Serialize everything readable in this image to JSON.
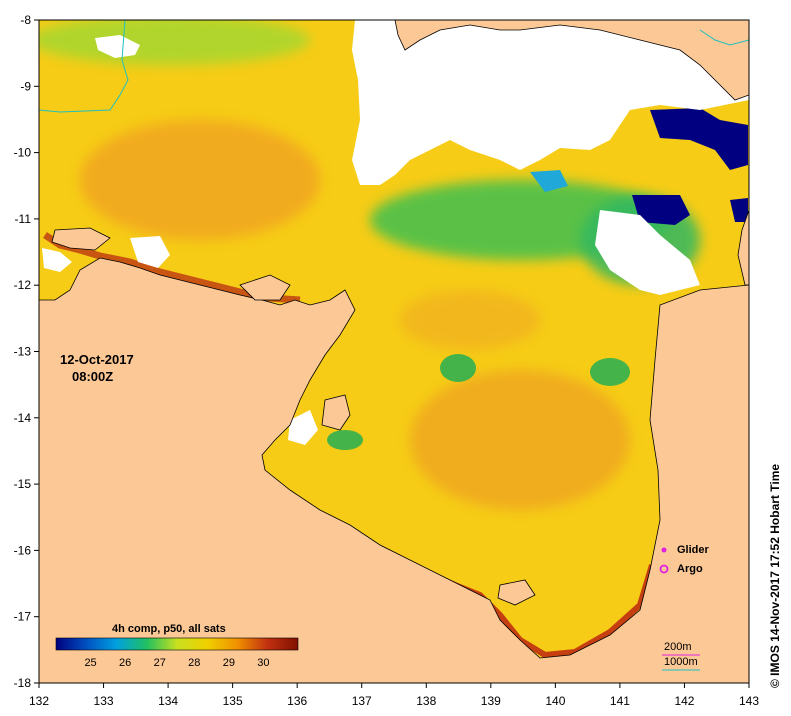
{
  "map": {
    "date": "12-Oct-2017",
    "time": "08:00Z",
    "credit": "© IMOS 14-Nov-2017 17:52 Hobart Time",
    "x_ticks": [
      "132",
      "133",
      "134",
      "135",
      "136",
      "137",
      "138",
      "139",
      "140",
      "141",
      "142",
      "143"
    ],
    "y_ticks": [
      "-8",
      "-9",
      "-10",
      "-11",
      "-12",
      "-13",
      "-14",
      "-15",
      "-16",
      "-17",
      "-18"
    ],
    "x_range": [
      132,
      143
    ],
    "y_range": [
      -18,
      -8
    ]
  },
  "colorbar": {
    "title": "4h comp, p50, all sats",
    "ticks": [
      "25",
      "26",
      "27",
      "28",
      "29",
      "30"
    ],
    "range": [
      24,
      31
    ],
    "colors": [
      "#000080",
      "#0050c0",
      "#00a0e0",
      "#20c060",
      "#c8e020",
      "#f0d000",
      "#f09000",
      "#c03010",
      "#801000"
    ]
  },
  "legend": {
    "glider_label": "Glider",
    "argo_label": "Argo",
    "glider_color": "#e020e0",
    "argo_color": "#e020e0"
  },
  "contours": {
    "line1": "200m",
    "line2": "1000m",
    "line1_color": "#e020e0",
    "line2_color": "#20c0c0"
  },
  "colors": {
    "land": "#fcc896",
    "nodata": "#ffffff",
    "frame": "#000000"
  }
}
